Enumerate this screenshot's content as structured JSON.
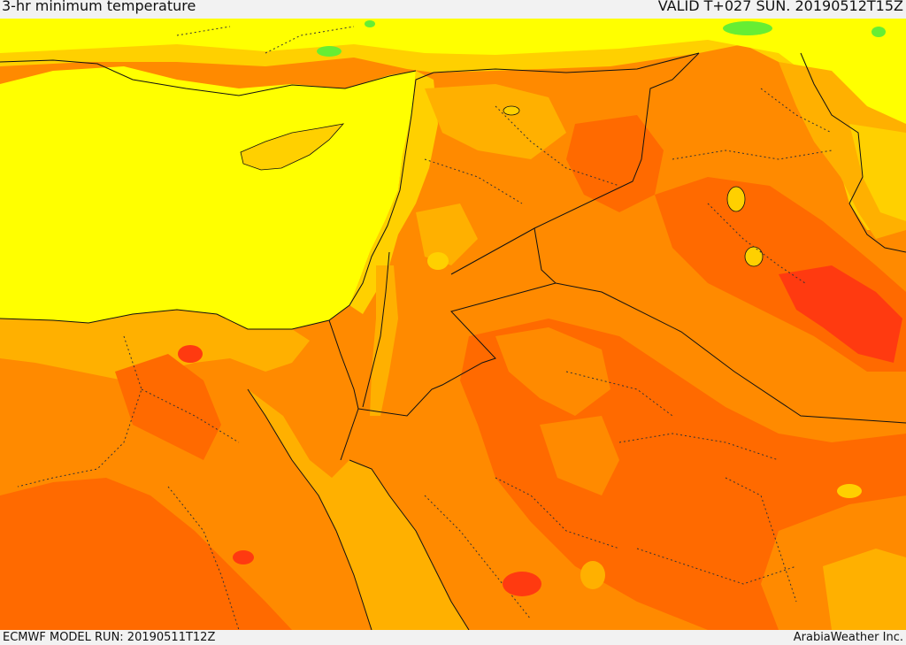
{
  "header": {
    "title": "3-hr minimum temperature",
    "valid_time": "VALID T+027 SUN. 20190512T15Z"
  },
  "footer": {
    "model_run": "ECMWF MODEL RUN: 20190511T12Z",
    "credit": "ArabiaWeather Inc."
  },
  "colors": {
    "sea_yellow": "#ffff00",
    "light_orange": "#ffd000",
    "amber": "#ffb000",
    "orange": "#ff8a00",
    "dark_orange": "#ff6a00",
    "red_orange": "#ff4a10",
    "green": "#66ee33",
    "border": "#111111"
  }
}
